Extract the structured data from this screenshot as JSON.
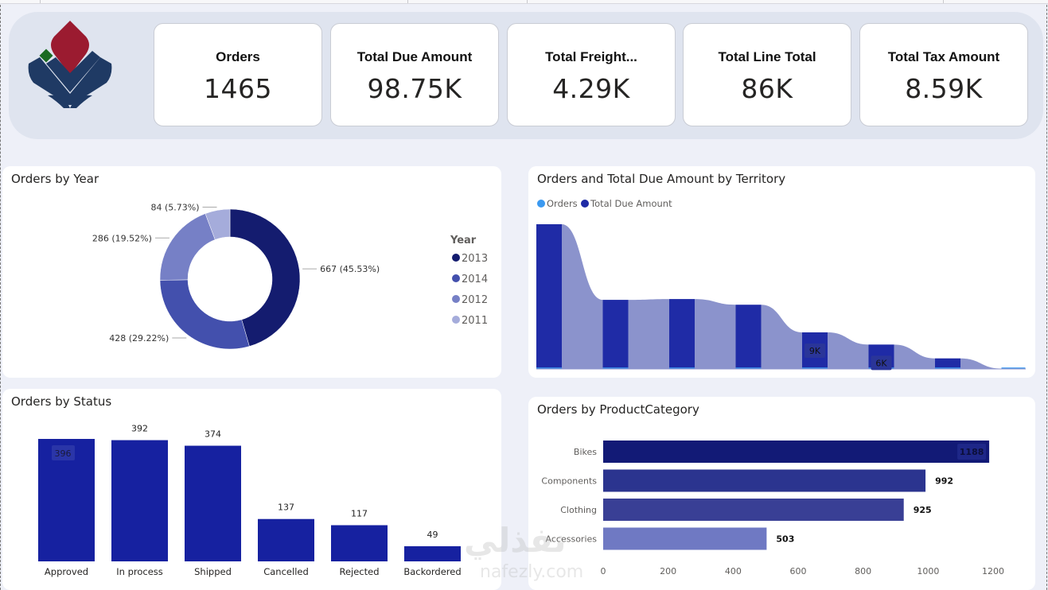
{
  "kpis": [
    {
      "label": "Orders",
      "value": "1465"
    },
    {
      "label": "Total Due Amount",
      "value": "98.75K"
    },
    {
      "label": "Total Freight...",
      "value": "4.29K"
    },
    {
      "label": "Total Line Total",
      "value": "86K"
    },
    {
      "label": "Total Tax Amount",
      "value": "8.59K"
    }
  ],
  "logo": {
    "icon": "company-logo-icon",
    "colors": {
      "petal": "#9b1b30",
      "diamond": "#1a6b22",
      "base": "#1f3a64"
    }
  },
  "colors": {
    "page_bg": "#eef0f8",
    "year_2013": "#141c6f",
    "year_2014": "#4350ad",
    "year_2012": "#7680c6",
    "year_2011": "#a5acdb",
    "status_bar": "#1621a0",
    "ribbon_bar": "#1f2ba6",
    "ribbon_band": "#8b93cc",
    "orders_series": "#3b99f0",
    "cat_bikes": "#121a76",
    "cat_components": "#2b348f",
    "cat_clothing": "#393f95",
    "cat_accessories": "#6f79c3"
  },
  "watermark": {
    "arabic": "نفذلي",
    "latin": "nafezly.com"
  },
  "chart_data": [
    {
      "type": "pie",
      "variant": "donut",
      "title": "Orders by Year",
      "legend_title": "Year",
      "legend_position": "right",
      "categories": [
        "2013",
        "2014",
        "2012",
        "2011"
      ],
      "values": [
        667,
        428,
        286,
        84
      ],
      "percentages": [
        "45.53%",
        "29.22%",
        "19.52%",
        "5.73%"
      ],
      "data_labels": [
        "667 (45.53%)",
        "428 (29.22%)",
        "286 (19.52%)",
        "84 (5.73%)"
      ]
    },
    {
      "type": "bar",
      "variant": "ribbon",
      "title": "Orders and Total Due Amount by Territory",
      "legend_position": "top-left",
      "legend": [
        "Orders",
        "Total Due Amount"
      ],
      "series": [
        {
          "name": "Total Due Amount",
          "values": [
            35600,
            17000,
            17200,
            15800,
            9000,
            6000,
            2600,
            100
          ]
        },
        {
          "name": "Orders",
          "values": [
            210,
            90,
            80,
            70,
            40,
            30,
            15,
            5
          ]
        }
      ],
      "data_labels": [
        "",
        "",
        "",
        "",
        "9K",
        "6K",
        "",
        ""
      ]
    },
    {
      "type": "bar",
      "title": "Orders by Status",
      "categories": [
        "Approved",
        "In process",
        "Shipped",
        "Cancelled",
        "Rejected",
        "Backordered"
      ],
      "values": [
        396,
        392,
        374,
        137,
        117,
        49
      ],
      "ylim": [
        0,
        396
      ]
    },
    {
      "type": "bar",
      "orientation": "horizontal",
      "title": "Orders by ProductCategory",
      "categories": [
        "Bikes",
        "Components",
        "Clothing",
        "Accessories"
      ],
      "values": [
        1188,
        992,
        925,
        503
      ],
      "x_ticks": [
        "0",
        "200",
        "400",
        "600",
        "800",
        "1000",
        "1200"
      ],
      "xlim": [
        0,
        1200
      ]
    }
  ]
}
